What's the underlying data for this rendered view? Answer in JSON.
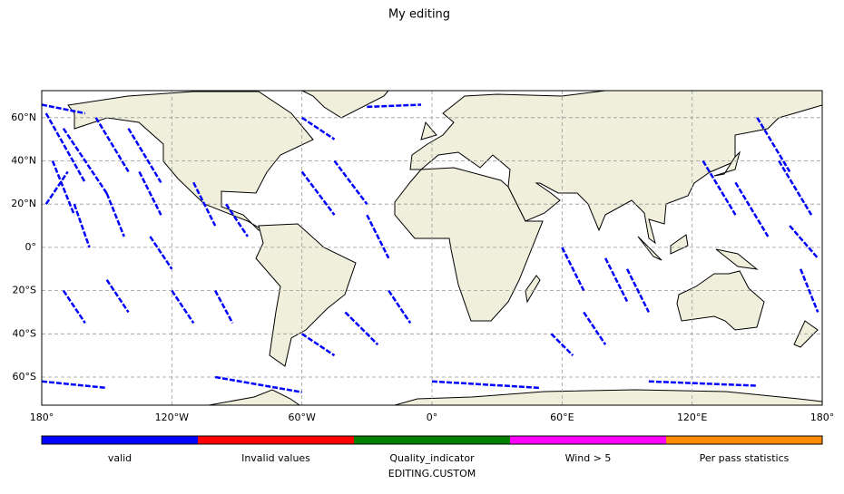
{
  "chart_data": {
    "type": "map",
    "title": "My editing",
    "xlim": [
      -180,
      180
    ],
    "ylim": [
      -73,
      72.5
    ],
    "xticks": [
      {
        "value": -180,
        "label": "180°"
      },
      {
        "value": -120,
        "label": "120°W"
      },
      {
        "value": -60,
        "label": "60°W"
      },
      {
        "value": 0,
        "label": "0°"
      },
      {
        "value": 60,
        "label": "60°E"
      },
      {
        "value": 120,
        "label": "120°E"
      },
      {
        "value": 180,
        "label": "180°"
      }
    ],
    "yticks": [
      {
        "value": -60,
        "label": "60°S"
      },
      {
        "value": -40,
        "label": "40°S"
      },
      {
        "value": -20,
        "label": "20°S"
      },
      {
        "value": 0,
        "label": "0°"
      },
      {
        "value": 20,
        "label": "20°N"
      },
      {
        "value": 40,
        "label": "40°N"
      },
      {
        "value": 60,
        "label": "60°N"
      }
    ],
    "grid": true,
    "colorbar_label": "EDITING.CUSTOM",
    "series": [
      {
        "name": "valid",
        "color": "#0000ff",
        "x": [
          -178,
          -160,
          null,
          -170,
          -150,
          null,
          -155,
          -140,
          null,
          -140,
          -125,
          null,
          -175,
          -165,
          null,
          -165,
          -158,
          null,
          -150,
          -142,
          null,
          -135,
          -125,
          null,
          -178,
          -168,
          null,
          -170,
          -160,
          null,
          -150,
          -140,
          null,
          -120,
          -110,
          null,
          -100,
          -92,
          null,
          -130,
          -120,
          null,
          -110,
          -100,
          null,
          -95,
          -85,
          null,
          -60,
          -45,
          null,
          -45,
          -30,
          null,
          -30,
          -20,
          null,
          -40,
          -25,
          null,
          -60,
          -45,
          null,
          -20,
          -10,
          null,
          60,
          70,
          null,
          80,
          90,
          null,
          70,
          80,
          null,
          55,
          65,
          null,
          90,
          100,
          null,
          125,
          140,
          null,
          140,
          155,
          null,
          160,
          175,
          null,
          150,
          165,
          null,
          170,
          178,
          null,
          -180,
          -150,
          null,
          -100,
          -60,
          null,
          0,
          50,
          null,
          100,
          150,
          null,
          -180,
          -160,
          null,
          -30,
          -5,
          null,
          165,
          178,
          null,
          -60,
          -45
        ],
        "values": [
          62,
          30,
          null,
          55,
          25,
          null,
          60,
          35,
          null,
          55,
          30,
          null,
          40,
          15,
          null,
          20,
          0,
          null,
          25,
          5,
          null,
          35,
          15,
          null,
          20,
          35,
          null,
          -20,
          -35,
          null,
          -15,
          -30,
          null,
          -20,
          -35,
          null,
          -20,
          -35,
          null,
          5,
          -10,
          null,
          30,
          10,
          null,
          20,
          5,
          null,
          35,
          15,
          null,
          40,
          20,
          null,
          15,
          -5,
          null,
          -30,
          -45,
          null,
          -40,
          -50,
          null,
          -20,
          -35,
          null,
          0,
          -20,
          null,
          -5,
          -25,
          null,
          -30,
          -45,
          null,
          -40,
          -50,
          null,
          -10,
          -30,
          null,
          40,
          15,
          null,
          30,
          5,
          null,
          40,
          15,
          null,
          60,
          35,
          null,
          -10,
          -30,
          null,
          -62,
          -65,
          null,
          -60,
          -67,
          null,
          -62,
          -65,
          null,
          -62,
          -64,
          null,
          66,
          62,
          null,
          65,
          66,
          null,
          10,
          -5,
          null,
          60,
          50
        ]
      },
      {
        "name": "Invalid values",
        "color": "#ff0000",
        "x": [],
        "values": []
      },
      {
        "name": "Quality_indicator",
        "color": "#008000",
        "x": [],
        "values": []
      },
      {
        "name": "Wind > 5",
        "color": "#ff00ff",
        "x": [],
        "values": []
      },
      {
        "name": "Per pass statistics",
        "color": "#ff8c00",
        "x": [],
        "values": []
      }
    ]
  }
}
